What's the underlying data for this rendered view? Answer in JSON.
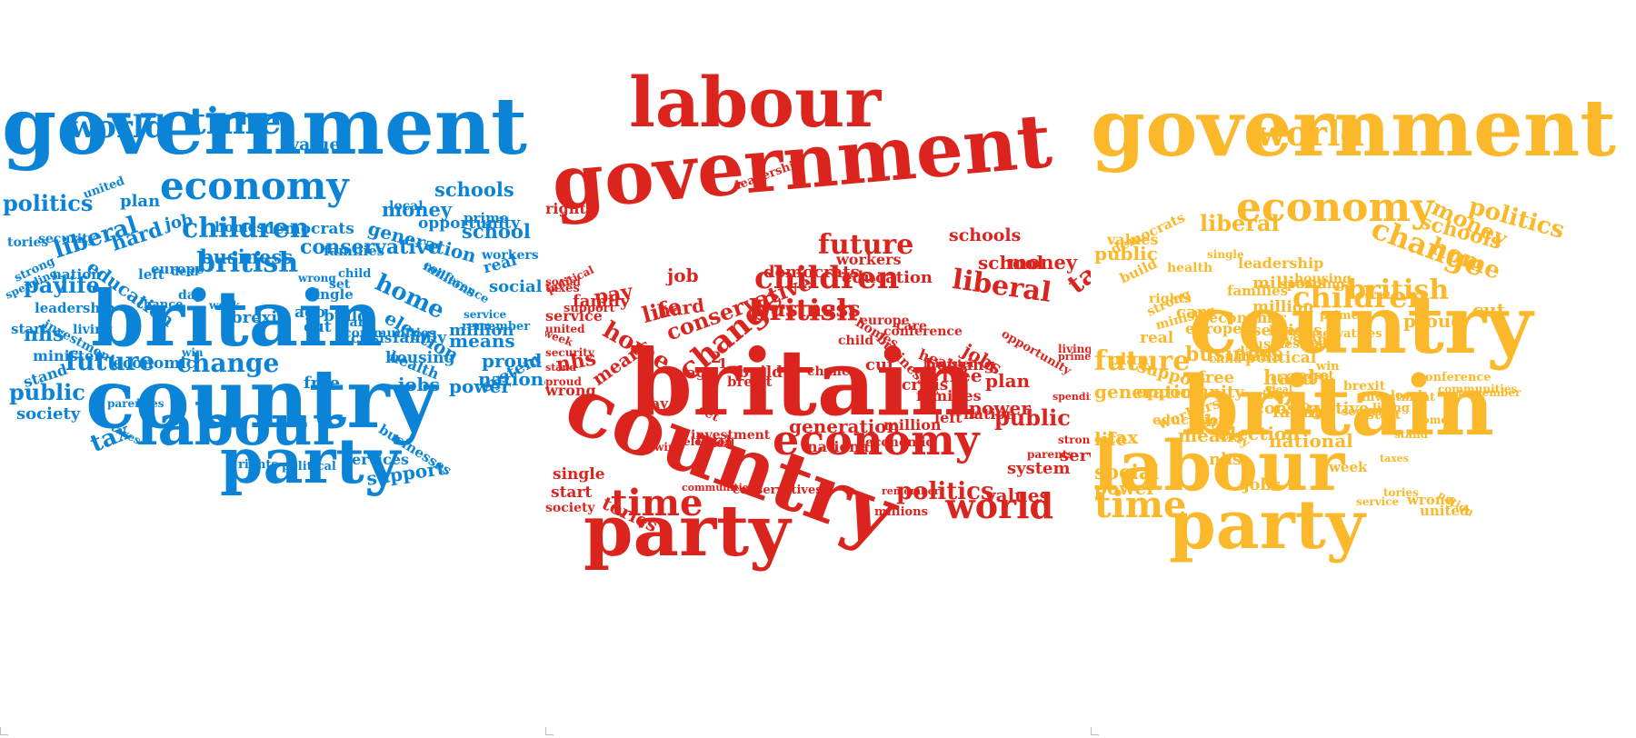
{
  "clouds": [
    {
      "name": "cloud-blue",
      "color": "#0b84d8",
      "words": [
        "government",
        "country",
        "britain",
        "labour",
        "party",
        "economy",
        "world",
        "time",
        "values",
        "politics",
        "children",
        "liberal",
        "business",
        "conservative",
        "british",
        "future",
        "change",
        "public",
        "society",
        "tax",
        "nhs",
        "pay",
        "life",
        "home",
        "school",
        "money",
        "schools",
        "opportunity",
        "generation",
        "education",
        "election",
        "means",
        "family",
        "national",
        "proud",
        "jobs",
        "power",
        "free",
        "economic",
        "leadership",
        "security",
        "tories",
        "strong",
        "spending",
        "nation",
        "start",
        "investment",
        "living",
        "minister",
        "stand",
        "hard",
        "job",
        "plan",
        "united",
        "homes",
        "democrats",
        "families",
        "workers",
        "real",
        "social",
        "millions",
        "remember",
        "million",
        "crisis",
        "housing",
        "health",
        "system",
        "support",
        "services",
        "rights",
        "political",
        "taxes",
        "parents",
        "lives",
        "win",
        "week",
        "chance",
        "deal",
        "left",
        "europe",
        "day",
        "brexit",
        "2",
        "1",
        "ago",
        "build",
        "cut",
        "care",
        "communities",
        "conference",
        "local",
        "prime",
        "wrong",
        "child",
        "service",
        "single",
        "businesses",
        "set",
        "conservatives"
      ]
    },
    {
      "name": "cloud-red",
      "color": "#dc241f",
      "words": [
        "labour",
        "government",
        "britain",
        "country",
        "party",
        "economy",
        "time",
        "world",
        "politics",
        "public",
        "children",
        "change",
        "british",
        "future",
        "liberal",
        "business",
        "money",
        "tax",
        "school",
        "schools",
        "home",
        "conservative",
        "education",
        "democrats",
        "family",
        "life",
        "pay",
        "hard",
        "job",
        "nhs",
        "means",
        "jobs",
        "power",
        "plan",
        "values",
        "system",
        "services",
        "generation",
        "free",
        "housing",
        "health",
        "crisis",
        "families",
        "nation",
        "left",
        "million",
        "national",
        "economic",
        "investment",
        "conference",
        "europe",
        "homes",
        "care",
        "chance",
        "child",
        "businesses",
        "cut",
        "build",
        "2",
        "1",
        "ago",
        "brexit",
        "day",
        "set",
        "real",
        "win",
        "election",
        "deal",
        "communities",
        "conservatives",
        "remember",
        "millions",
        "single",
        "start",
        "society",
        "tories",
        "wrong",
        "proud",
        "stand",
        "security",
        "week",
        "service",
        "political",
        "social",
        "taxes",
        "rights",
        "leadership",
        "support",
        "workers",
        "minister",
        "opportunity",
        "living",
        "prime",
        "parents",
        "strong",
        "united",
        "spending",
        "local",
        "lives"
      ]
    },
    {
      "name": "cloud-yellow",
      "color": "#fbb82a",
      "words": [
        "government",
        "britain",
        "country",
        "labour",
        "party",
        "economy",
        "world",
        "politics",
        "change",
        "children",
        "british",
        "future",
        "time",
        "liberal",
        "public",
        "values",
        "social",
        "school",
        "money",
        "schools",
        "home",
        "business",
        "generation",
        "national",
        "life",
        "tax",
        "power",
        "proud",
        "family",
        "free",
        "job",
        "jobs",
        "hard",
        "nhs",
        "means",
        "election",
        "opportunity",
        "support",
        "system",
        "conservative",
        "democrats",
        "education",
        "society",
        "pay",
        "build",
        "cut",
        "care",
        "economic",
        "europe",
        "housing",
        "health",
        "families",
        "millions",
        "million",
        "services",
        "political",
        "conservatives",
        "leadership",
        "prime",
        "single",
        "spending",
        "strong",
        "rights",
        "minister",
        "real",
        "plan",
        "workers",
        "left",
        "day",
        "lives",
        "businesses",
        "chance",
        "deal",
        "crisis",
        "child",
        "1",
        "2",
        "ago",
        "set",
        "brexit",
        "win",
        "investment",
        "security",
        "start",
        "local",
        "living",
        "conference",
        "communities",
        "remember",
        "homes",
        "stand",
        "taxes",
        "week",
        "service",
        "tories",
        "wrong",
        "united",
        "nation"
      ]
    }
  ]
}
